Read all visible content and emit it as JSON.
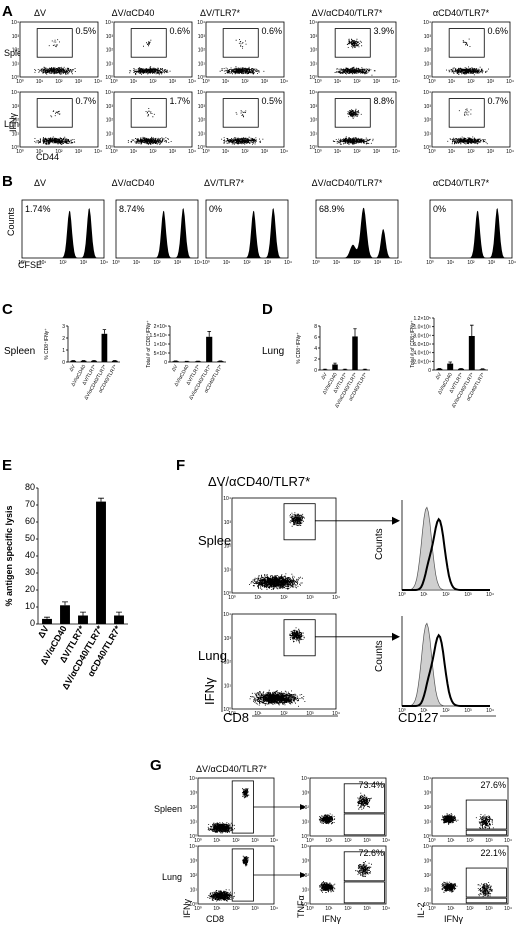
{
  "figure": {
    "panel_letters": [
      "A",
      "B",
      "C",
      "D",
      "E",
      "F",
      "G"
    ],
    "groups": [
      "ΔV",
      "ΔV/αCD40",
      "ΔV/TLR7*",
      "ΔV/αCD40/TLR7*",
      "αCD40/TLR7*"
    ],
    "panel_a": {
      "row_labels": [
        "Spleen",
        "Lung"
      ],
      "y_axis": "IFNγ",
      "x_axis": "CD44",
      "percentages": {
        "Spleen": [
          "0.5%",
          "0.6%",
          "0.6%",
          "3.9%",
          "0.6%"
        ],
        "Lung": [
          "0.7%",
          "1.7%",
          "0.5%",
          "8.8%",
          "0.7%"
        ]
      }
    },
    "panel_b": {
      "y_axis": "Counts",
      "x_axis": "CFSE",
      "percentages": [
        "1.74%",
        "8.74%",
        "0%",
        "68.9%",
        "0%"
      ]
    },
    "panel_c": {
      "organ": "Spleen",
      "ylabel_pct": "% CD8⁺IFNγ⁺",
      "ylabel_total": "Total # of CD8⁺IFNγ⁺"
    },
    "panel_d": {
      "organ": "Lung",
      "ylabel_pct": "% CD8⁺IFNγ⁺",
      "ylabel_total": "Total # of CD8⁺IFNγ⁺"
    },
    "panel_e": {
      "ylabel": "% antigen specific lysis"
    },
    "panel_f": {
      "title": "ΔV/αCD40/TLR7*",
      "row_labels": [
        "Spleen",
        "Lung"
      ],
      "y_axis": "IFNγ",
      "x_axis": "CD8",
      "hist_y": "Counts",
      "hist_x": "CD127"
    },
    "panel_g": {
      "title": "ΔV/αCD40/TLR7*",
      "row_labels": [
        "Spleen",
        "Lung"
      ],
      "x_left": "CD8",
      "y_left": "IFNγ",
      "x_mid": "IFNγ",
      "y_mid": "TNFα",
      "x_right": "IFNγ",
      "y_right": "IL-2",
      "tnf_pct": [
        "73.4%",
        "72.6%"
      ],
      "il2_pct": [
        "27.6%",
        "22.1%"
      ]
    }
  },
  "chart_data": [
    {
      "panel": "C",
      "type": "bar",
      "categories": [
        "ΔV",
        "ΔV/αCD40",
        "ΔV/TLR7*",
        "ΔV/αCD40/TLR7*",
        "αCD40/TLR7*"
      ],
      "values": [
        0.1,
        0.1,
        0.1,
        2.35,
        0.1
      ],
      "errors": [
        0.02,
        0.02,
        0.02,
        0.35,
        0.02
      ],
      "ylabel": "% CD8⁺IFNγ⁺",
      "ylim": [
        0,
        3
      ],
      "yticks": [
        "0",
        "1",
        "2",
        "3"
      ]
    },
    {
      "panel": "C",
      "type": "bar",
      "categories": [
        "ΔV",
        "ΔV/αCD40",
        "ΔV/TLR7*",
        "ΔV/αCD40/TLR7*",
        "αCD40/TLR7*"
      ],
      "values": [
        50000,
        30000,
        40000,
        1400000,
        50000
      ],
      "errors": [
        10000,
        10000,
        10000,
        300000,
        10000
      ],
      "ylabel": "Total # of CD8⁺IFNγ⁺",
      "ylim": [
        0,
        2000000
      ],
      "yticks": [
        "0",
        "5×10⁵",
        "1×10⁶",
        "1.5×10⁶",
        "2×10⁶"
      ]
    },
    {
      "panel": "D",
      "type": "bar",
      "categories": [
        "ΔV",
        "ΔV/αCD40",
        "ΔV/TLR7*",
        "ΔV/αCD40/TLR7*",
        "αCD40/TLR7*"
      ],
      "values": [
        0.1,
        1.0,
        0.1,
        6.1,
        0.1
      ],
      "errors": [
        0.05,
        0.25,
        0.05,
        1.4,
        0.05
      ],
      "ylabel": "% CD8⁺IFNγ⁺",
      "ylim": [
        0,
        8
      ],
      "yticks": [
        "0",
        "2",
        "4",
        "6",
        "8"
      ]
    },
    {
      "panel": "D",
      "type": "bar",
      "categories": [
        "ΔV",
        "ΔV/αCD40",
        "ΔV/TLR7*",
        "ΔV/αCD40/TLR7*",
        "αCD40/TLR7*"
      ],
      "values": [
        3000,
        16000,
        3000,
        85000,
        2000
      ],
      "errors": [
        1000,
        4000,
        1000,
        27000,
        1000
      ],
      "ylabel": "Total # of CD8⁺IFNγ⁺",
      "ylim": [
        0,
        130000
      ],
      "yticks": [
        "0",
        "2.0×10⁴",
        "4.0×10⁴",
        "6.0×10⁴",
        "8.0×10⁴",
        "1.0×10⁵",
        "1.2×10⁵"
      ]
    },
    {
      "panel": "E",
      "type": "bar",
      "categories": [
        "ΔV",
        "ΔV/αCD40",
        "ΔV/TLR7*",
        "ΔV/αCD40/TLR7*",
        "αCD40/TLR7*"
      ],
      "values": [
        3,
        11,
        5,
        72,
        5
      ],
      "errors": [
        1,
        2,
        2,
        2,
        2
      ],
      "ylabel": "% antigen specific lysis",
      "ylim": [
        0,
        80
      ],
      "yticks": [
        "0",
        "10",
        "20",
        "30",
        "40",
        "50",
        "60",
        "70",
        "80"
      ]
    }
  ]
}
